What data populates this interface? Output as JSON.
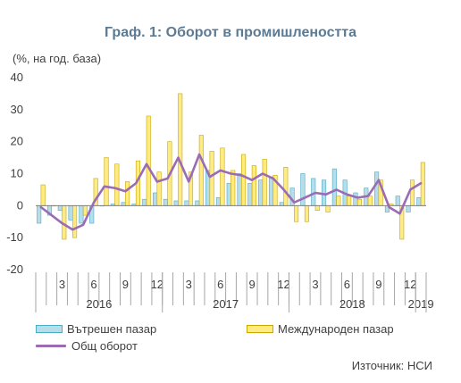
{
  "chart_data": {
    "type": "bar",
    "title": "Граф. 1: Оборот в промишлеността",
    "ylabel": "(%, на год. база)",
    "ylim": [
      -20,
      40
    ],
    "yticks": [
      40,
      30,
      20,
      10,
      0,
      -10,
      -20
    ],
    "grid": false,
    "legend": "bottom",
    "x_tick_labels": [
      "",
      "",
      "3",
      "",
      "",
      "6",
      "",
      "",
      "9",
      "",
      "",
      "12",
      "",
      "",
      "3",
      "",
      "",
      "6",
      "",
      "",
      "9",
      "",
      "",
      "12",
      "",
      "",
      "3",
      "",
      "",
      "6",
      "",
      "",
      "9",
      "",
      "",
      "12",
      ""
    ],
    "year_labels": [
      {
        "label": "2016",
        "start_index": 0,
        "end_index": 11
      },
      {
        "label": "2017",
        "start_index": 12,
        "end_index": 23
      },
      {
        "label": "2018",
        "start_index": 24,
        "end_index": 35
      },
      {
        "label": "2019",
        "start_index": 36,
        "end_index": 36
      }
    ],
    "categories": [
      "2016-01",
      "2016-02",
      "2016-03",
      "2016-04",
      "2016-05",
      "2016-06",
      "2016-07",
      "2016-08",
      "2016-09",
      "2016-10",
      "2016-11",
      "2016-12",
      "2017-01",
      "2017-02",
      "2017-03",
      "2017-04",
      "2017-05",
      "2017-06",
      "2017-07",
      "2017-08",
      "2017-09",
      "2017-10",
      "2017-11",
      "2017-12",
      "2018-01",
      "2018-02",
      "2018-03",
      "2018-04",
      "2018-05",
      "2018-06",
      "2018-07",
      "2018-08",
      "2018-09",
      "2018-10",
      "2018-11",
      "2018-12",
      "2019-01"
    ],
    "series": [
      {
        "name": "Вътрешен пазар",
        "kind": "bar",
        "color": "#b7dde8",
        "stroke": "#4bacc6",
        "values": [
          -5.5,
          -3,
          -1.5,
          -4.5,
          -5.5,
          -5.5,
          0,
          0.5,
          1,
          0.5,
          2,
          4,
          2,
          1.5,
          1.5,
          1.5,
          11,
          2.5,
          7,
          10,
          7,
          8,
          9,
          1,
          5.5,
          10,
          8.5,
          8,
          11.5,
          8,
          4,
          5.5,
          10.5,
          -2,
          3,
          -2,
          2.5
        ]
      },
      {
        "name": "Международен пазар",
        "kind": "bar",
        "color": "#ffeb84",
        "stroke": "#c9a800",
        "values": [
          6.5,
          0,
          -10.5,
          -10,
          -3,
          8.5,
          15,
          13,
          7.5,
          14,
          28,
          10.5,
          20,
          35,
          10.5,
          22,
          17,
          18,
          11,
          16,
          12.5,
          14.5,
          9.5,
          12,
          -5,
          -5,
          -1.5,
          -2,
          3,
          3,
          2,
          3,
          8,
          0.5,
          -10.5,
          8,
          13.5
        ]
      },
      {
        "name": "Общ оборот",
        "kind": "line",
        "color": "#9b6bb4",
        "values": [
          -0.5,
          -3,
          -5.5,
          -7.5,
          -6,
          1,
          6,
          5.5,
          4.5,
          7,
          13,
          7.5,
          8.5,
          15,
          7.5,
          16,
          9,
          11,
          10,
          9.5,
          8,
          10,
          8.5,
          5,
          1,
          2.5,
          4,
          3.5,
          5,
          3.5,
          2.5,
          3,
          8,
          -0.5,
          -2.5,
          5,
          7
        ]
      }
    ]
  },
  "source": "Източник: НСИ"
}
